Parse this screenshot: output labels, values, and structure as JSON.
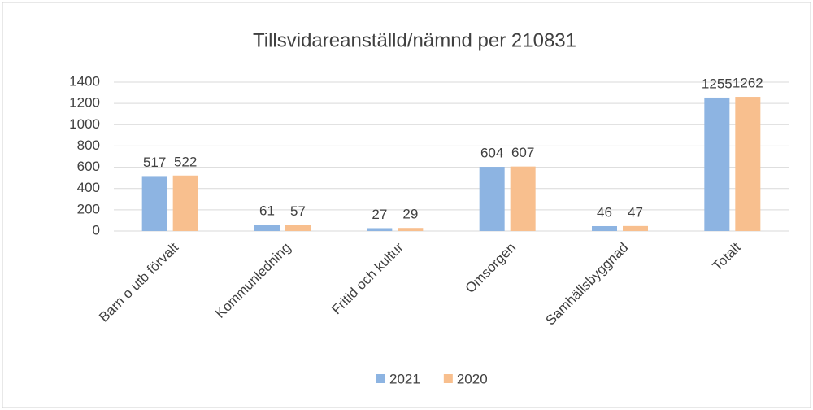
{
  "chart_data": {
    "type": "bar",
    "title": "Tillsvidareanställd/nämnd per 210831",
    "categories": [
      "Barn o utb förvalt",
      "Kommunledning",
      "Fritid och kultur",
      "Omsorgen",
      "Samhällsbyggnad",
      "Totalt"
    ],
    "series": [
      {
        "name": "2021",
        "color": "#8db4e2",
        "values": [
          517,
          61,
          27,
          604,
          46,
          1255
        ]
      },
      {
        "name": "2020",
        "color": "#f8bf8e",
        "values": [
          522,
          57,
          29,
          607,
          47,
          1262
        ]
      }
    ],
    "ylim": [
      0,
      1400
    ],
    "yticks": [
      0,
      200,
      400,
      600,
      800,
      1000,
      1200,
      1400
    ],
    "grid": true,
    "legend": "bottom"
  }
}
